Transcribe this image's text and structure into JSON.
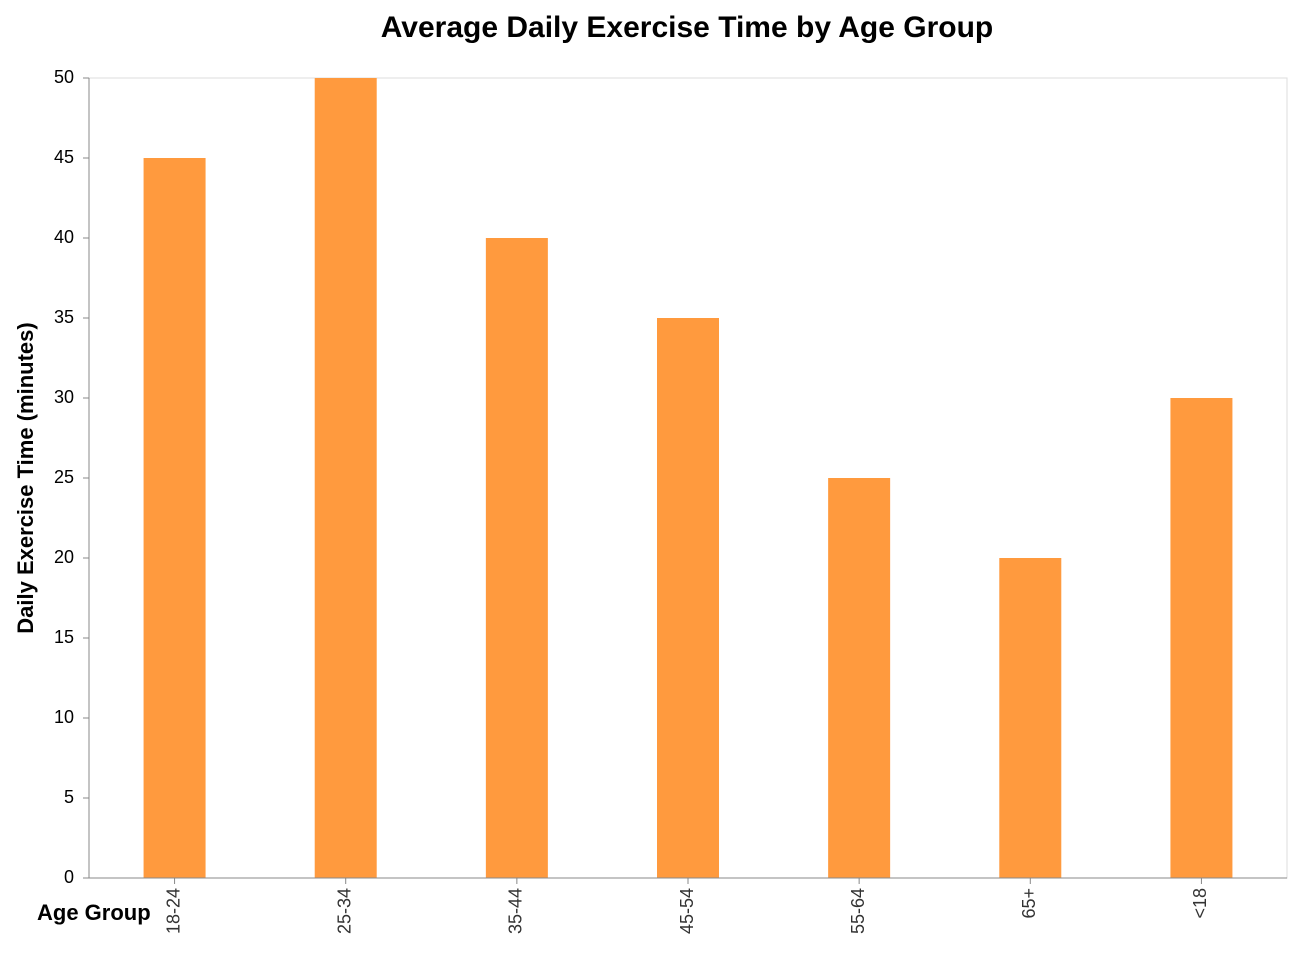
{
  "chart_data": {
    "type": "bar",
    "title": "Average Daily Exercise Time by Age Group",
    "xlabel": "Age Group",
    "ylabel": "Daily Exercise Time (minutes)",
    "categories": [
      "18-24",
      "25-34",
      "35-44",
      "45-54",
      "55-64",
      "65+",
      "<18"
    ],
    "values": [
      45,
      50,
      40,
      35,
      25,
      20,
      30
    ],
    "ylim": [
      0,
      50
    ],
    "yticks": [
      0,
      5,
      10,
      15,
      20,
      25,
      30,
      35,
      40,
      45,
      50
    ],
    "grid": false,
    "bar_color": "#ff9a3e",
    "axis_color": "#888888"
  }
}
